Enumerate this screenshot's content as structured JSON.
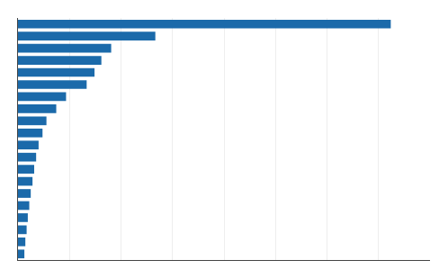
{
  "chart_data": {
    "type": "bar",
    "orientation": "horizontal",
    "values": [
      3800,
      1400,
      950,
      850,
      780,
      700,
      490,
      390,
      290,
      250,
      210,
      185,
      165,
      148,
      130,
      115,
      100,
      88,
      75,
      65
    ],
    "color": "#1B6AAA",
    "xlim": [
      0,
      4200
    ],
    "xticks": [
      525,
      1050,
      1575,
      2100,
      2625,
      3150,
      3675,
      4200
    ],
    "grid": true,
    "tick_labels": false
  }
}
